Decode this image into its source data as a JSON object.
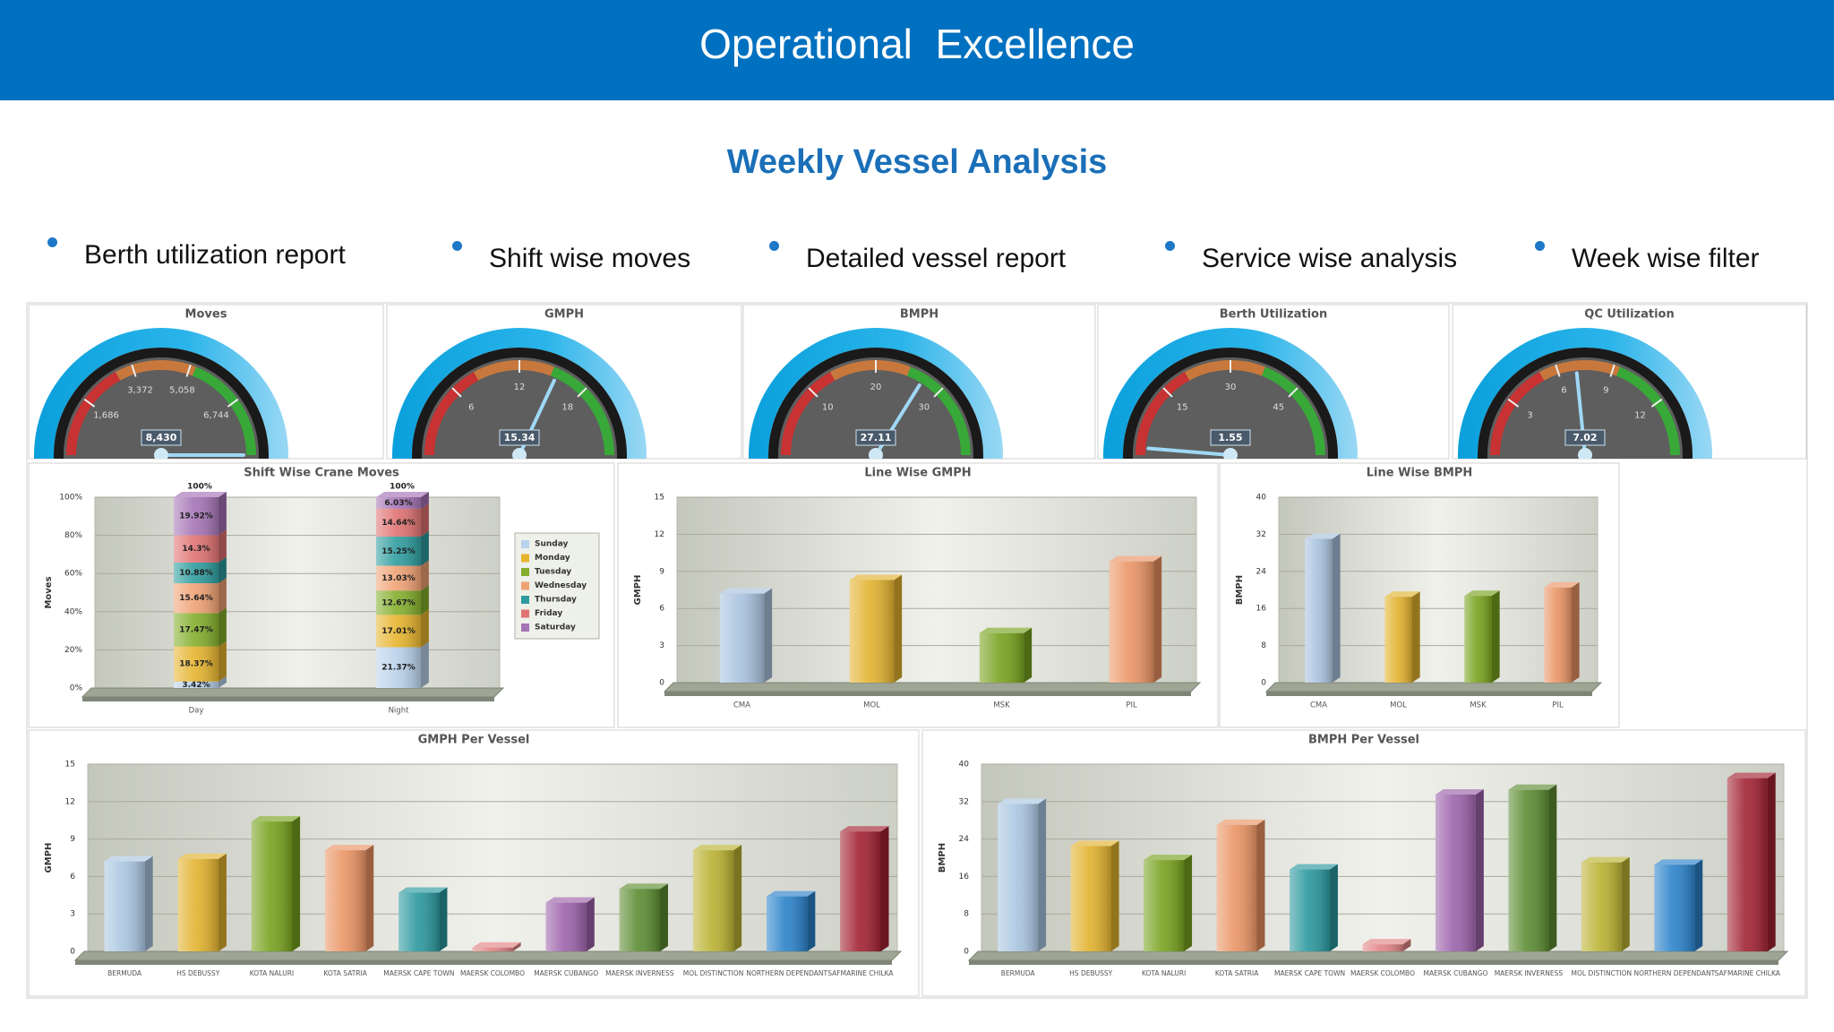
{
  "header": {
    "title": "Operational  Excellence",
    "subtitle": "Weekly Vessel Analysis"
  },
  "bullets": [
    "Berth utilization report",
    "Shift wise moves",
    "Detailed vessel report",
    "Service wise analysis",
    "Week wise filter"
  ],
  "chart_data": [
    {
      "type": "gauge",
      "title": "Moves",
      "value": 8430,
      "value_label": "8,430",
      "ylim": [
        0,
        8430
      ],
      "yticks": [
        {
          "value": 1686,
          "label": "1,686"
        },
        {
          "value": 3372,
          "label": "3,372"
        },
        {
          "value": 5058,
          "label": "5,058"
        },
        {
          "value": 6744,
          "label": "6,744"
        }
      ]
    },
    {
      "type": "gauge",
      "title": "GMPH",
      "value": 15.34,
      "ylim": [
        0,
        24
      ],
      "yticks": [
        6,
        12,
        18
      ]
    },
    {
      "type": "gauge",
      "title": "BMPH",
      "value": 27.11,
      "ylim": [
        0,
        40
      ],
      "yticks": [
        10,
        20,
        30
      ]
    },
    {
      "type": "gauge",
      "title": "Berth Utilization",
      "value": 1.55,
      "ylim": [
        0,
        60
      ],
      "yticks": [
        15,
        30,
        45
      ]
    },
    {
      "type": "gauge",
      "title": "QC Utilization",
      "value": 7.02,
      "ylim": [
        0,
        15
      ],
      "yticks": [
        3,
        6,
        9,
        12
      ]
    },
    {
      "type": "stacked_bar",
      "title": "Shift Wise Crane Moves",
      "ylabel": "Moves",
      "categories": [
        "Day",
        "Night"
      ],
      "ylim": [
        0,
        100
      ],
      "yticks": [
        {
          "value": 0,
          "label": "0%"
        },
        {
          "value": 20,
          "label": "20%"
        },
        {
          "value": 40,
          "label": "40%"
        },
        {
          "value": 60,
          "label": "60%"
        },
        {
          "value": 80,
          "label": "80%"
        },
        {
          "value": 100,
          "label": "100%"
        }
      ],
      "totals": [
        100,
        100
      ],
      "total_labels": [
        "100%",
        "100%"
      ],
      "series": [
        {
          "name": "Sunday",
          "color": "#b9d1ea",
          "values": [
            3.42,
            21.37
          ],
          "value_labels": [
            "3.42%",
            "21.37%"
          ]
        },
        {
          "name": "Monday",
          "color": "#e6b42e",
          "values": [
            18.37,
            17.01
          ],
          "value_labels": [
            "18.37%",
            "17.01%"
          ]
        },
        {
          "name": "Tuesday",
          "color": "#84ae2c",
          "values": [
            17.47,
            12.67
          ],
          "value_labels": [
            "17.47%",
            "12.67%"
          ]
        },
        {
          "name": "Wednesday",
          "color": "#f0a274",
          "values": [
            15.64,
            13.03
          ],
          "value_labels": [
            "15.64%",
            "13.03%"
          ]
        },
        {
          "name": "Thursday",
          "color": "#2e9c9e",
          "values": [
            10.88,
            15.25
          ],
          "value_labels": [
            "10.88%",
            "15.25%"
          ]
        },
        {
          "name": "Friday",
          "color": "#e07272",
          "values": [
            14.3,
            14.64
          ],
          "value_labels": [
            "14.3%",
            "14.64%"
          ]
        },
        {
          "name": "Saturday",
          "color": "#a574b6",
          "values": [
            19.92,
            6.03
          ],
          "value_labels": [
            "19.92%",
            "6.03%"
          ]
        }
      ]
    },
    {
      "type": "bar",
      "title": "Line Wise GMPH",
      "ylabel": "GMPH",
      "categories": [
        "CMA",
        "MOL",
        "MSK",
        "PIL"
      ],
      "values": [
        7.2,
        8.3,
        4,
        9.8
      ],
      "colors": [
        "#a8c2de",
        "#e2b22e",
        "#78a21e",
        "#ea9464"
      ],
      "ylim": [
        0,
        15
      ],
      "yticks": [
        0,
        3,
        6,
        9,
        12,
        15
      ],
      "grid": true
    },
    {
      "type": "bar",
      "title": "Line Wise BMPH",
      "ylabel": "BMPH",
      "categories": [
        "CMA",
        "MOL",
        "MSK",
        "PIL"
      ],
      "values": [
        31,
        18.5,
        18.7,
        20.5
      ],
      "colors": [
        "#a8c2de",
        "#e2b22e",
        "#78a21e",
        "#ea9464"
      ],
      "ylim": [
        0,
        40
      ],
      "yticks": [
        0,
        8,
        16,
        24,
        32,
        40
      ],
      "grid": true
    },
    {
      "type": "bar",
      "title": "GMPH Per Vessel",
      "ylabel": "GMPH",
      "categories": [
        "BERMUDA",
        "HS DEBUSSY",
        "KOTA NALURI",
        "KOTA SATRIA",
        "MAERSK CAPE TOWN",
        "MAERSK COLOMBO",
        "MAERSK CUBANGO",
        "MAERSK INVERNESS",
        "MOL DISTINCTION",
        "NORTHERN DEPENDANT",
        "SAFMARINE CHILKA"
      ],
      "values": [
        7.2,
        7.4,
        10.4,
        8.1,
        4.7,
        0.3,
        3.9,
        5,
        8.1,
        4.4,
        9.6
      ],
      "colors": [
        "#aac6e2",
        "#e2b22e",
        "#78a21e",
        "#ea9464",
        "#2a989e",
        "#e28484",
        "#9c62aa",
        "#5c8c32",
        "#bab232",
        "#2a82ca",
        "#a22232"
      ],
      "ylim": [
        0,
        15
      ],
      "yticks": [
        0,
        3,
        6,
        9,
        12,
        15
      ],
      "grid": true
    },
    {
      "type": "bar",
      "title": "BMPH Per Vessel",
      "ylabel": "BMPH",
      "categories": [
        "BERMUDA",
        "HS DEBUSSY",
        "KOTA NALURI",
        "KOTA SATRIA",
        "MAERSK CAPE TOWN",
        "MAERSK COLOMBO",
        "MAERSK CUBANGO",
        "MAERSK INVERNESS",
        "MOL DISTINCTION",
        "NORTHERN DEPENDANT",
        "SAFMARINE CHILKA"
      ],
      "values": [
        31.5,
        22.5,
        19.5,
        27,
        17.5,
        1.5,
        33.5,
        34.5,
        19,
        18.5,
        37
      ],
      "colors": [
        "#aac6e2",
        "#e2b22e",
        "#78a21e",
        "#ea9464",
        "#2a989e",
        "#e28484",
        "#9c62aa",
        "#5c8c32",
        "#bab232",
        "#2a82ca",
        "#a22232"
      ],
      "ylim": [
        0,
        40
      ],
      "yticks": [
        0,
        8,
        16,
        24,
        32,
        40
      ],
      "grid": true
    }
  ]
}
